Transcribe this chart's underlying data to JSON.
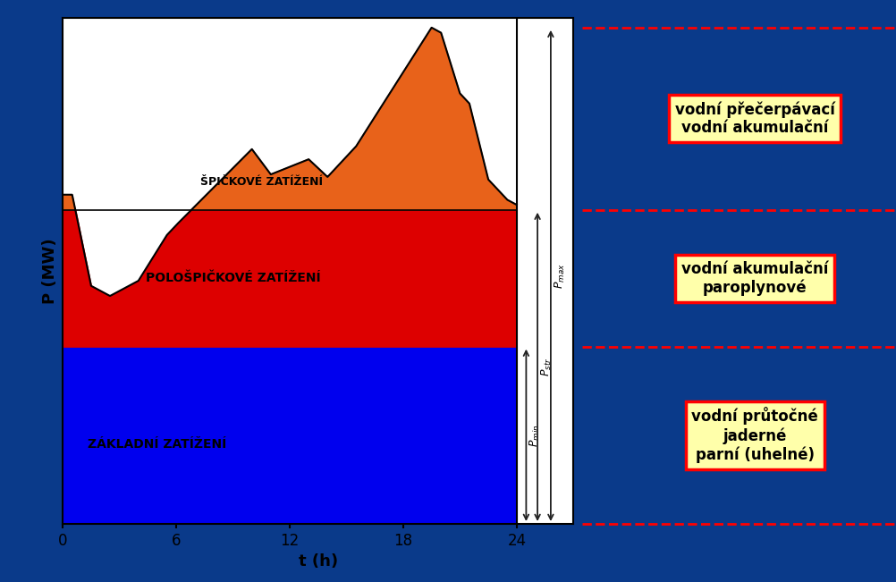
{
  "background_color": "#0a3a8a",
  "plot_bg": "#ffffff",
  "xlabel": "t (h)",
  "ylabel": "P (MW)",
  "xlim": [
    0,
    24
  ],
  "ylim": [
    0,
    10
  ],
  "base_level": 3.5,
  "semi_peak_level": 6.2,
  "p_min": 3.5,
  "p_str": 6.2,
  "p_max": 9.8,
  "blue_color": "#0000ee",
  "red_color": "#dd0000",
  "orange_color": "#e8621a",
  "label_base": "ZÁKLADNÍ ZATÍŽENÍ",
  "label_semi": "POLOŠPIČKOVÉ ZATÍŽENÍ",
  "label_peak": "ŠPIČKOVÉ ZATÍŽENÍ",
  "box1_text": "vodní přečerpávací\nvodní akumulační",
  "box2_text": "vodní akumulační\nparoplynové",
  "box3_text": "vodní průtočné\njaderné\nparní (uhelné)",
  "box_bg": "#ffffaa",
  "box_edge": "#ff0000",
  "dashed_color": "#ff0000",
  "arrow_color": "#222222"
}
